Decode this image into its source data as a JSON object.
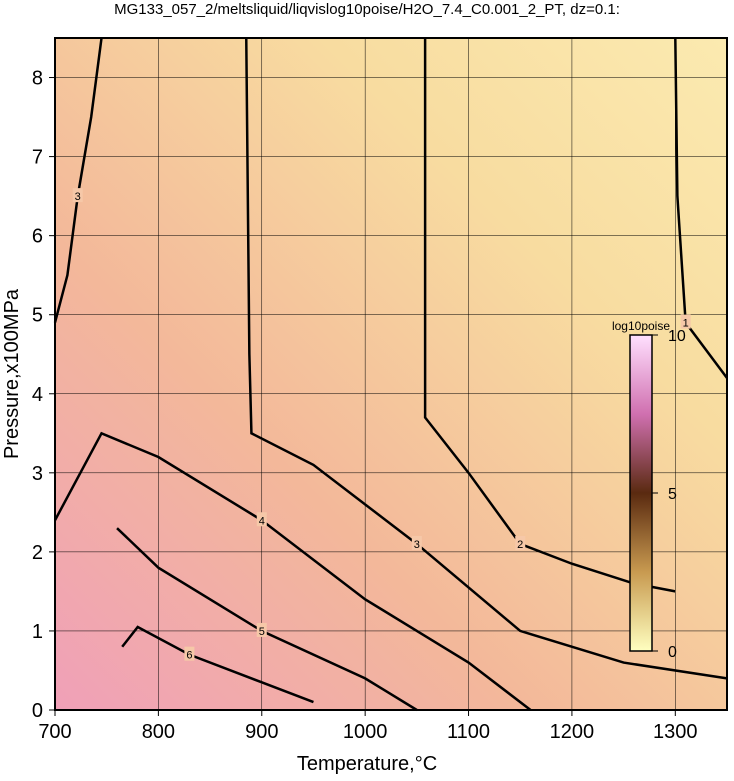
{
  "chart_data": {
    "type": "contour",
    "title": "MG133_057_2/meltsliquid/liqvislog10poise/H2O_7.4_C0.001_2_PT, dz=0.1:",
    "x_label": "Temperature,°C",
    "y_label": "Pressure,x100MPa",
    "xlim": [
      700,
      1350
    ],
    "xticks": [
      700,
      800,
      900,
      1000,
      1100,
      1200,
      1300
    ],
    "ylim": [
      0,
      8.5
    ],
    "yticks": [
      0,
      1,
      2,
      3,
      4,
      5,
      6,
      7,
      8
    ],
    "grid": true,
    "contour_color": "#000000",
    "contours": [
      {
        "level": 1,
        "x": [
          1300,
          1302,
          1310,
          1350
        ],
        "y": [
          8.5,
          6.5,
          4.9,
          4.2
        ]
      },
      {
        "level": 2,
        "x": [
          1058,
          1058,
          1100,
          1150,
          1200,
          1260,
          1300
        ],
        "y": [
          8.5,
          3.7,
          3.0,
          2.1,
          1.85,
          1.6,
          1.5
        ]
      },
      {
        "level": 3,
        "x": [
          885,
          888,
          890,
          950,
          1050,
          1150,
          1250,
          1350
        ],
        "y": [
          8.5,
          4.5,
          3.5,
          3.1,
          2.1,
          1.0,
          0.6,
          0.4
        ]
      },
      {
        "level": 3,
        "x": [
          700,
          712,
          722,
          735,
          745
        ],
        "y": [
          4.9,
          5.5,
          6.5,
          7.5,
          8.5
        ]
      },
      {
        "level": 4,
        "x": [
          700,
          745,
          800,
          900,
          1000,
          1100,
          1160
        ],
        "y": [
          2.4,
          3.5,
          3.2,
          2.4,
          1.4,
          0.6,
          0
        ]
      },
      {
        "level": 5,
        "x": [
          760,
          800,
          900,
          1000,
          1050
        ],
        "y": [
          2.3,
          1.8,
          1.0,
          0.4,
          0
        ]
      },
      {
        "level": 6,
        "x": [
          765,
          780,
          830,
          900,
          950
        ],
        "y": [
          0.8,
          1.05,
          0.7,
          0.35,
          0.1
        ]
      }
    ],
    "colorbar": {
      "label": "log10poise",
      "clim": [
        0,
        10
      ],
      "ticks": [
        0,
        5,
        10
      ]
    }
  }
}
